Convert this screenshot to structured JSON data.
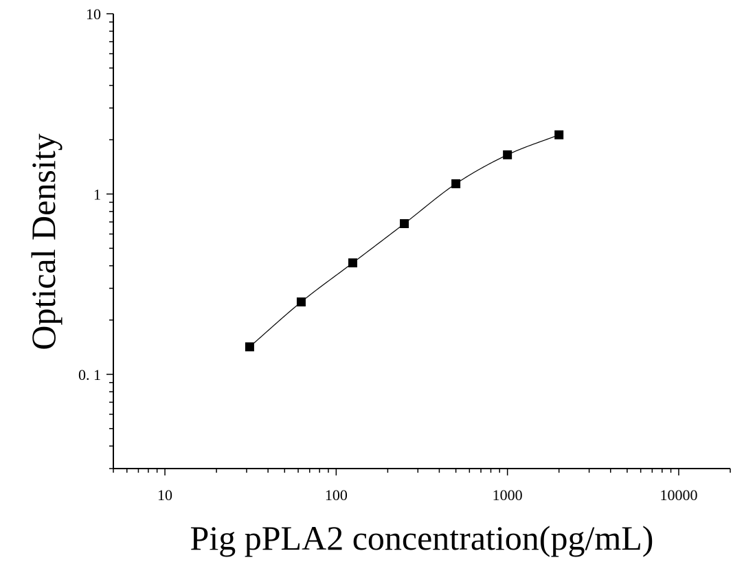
{
  "chart_data": {
    "type": "scatter",
    "title": "",
    "xlabel": "Pig pPLA2 concentration(pg/mL)",
    "ylabel": "Optical Density",
    "x_scale": "log",
    "y_scale": "log",
    "xlim": [
      5,
      20000
    ],
    "ylim": [
      0.03,
      10
    ],
    "x_ticks": [
      {
        "value": 10,
        "label": "10"
      },
      {
        "value": 100,
        "label": "100"
      },
      {
        "value": 1000,
        "label": "1000"
      },
      {
        "value": 10000,
        "label": "10000"
      }
    ],
    "y_ticks": [
      {
        "value": 0.1,
        "label": "0. 1"
      },
      {
        "value": 1,
        "label": "1"
      },
      {
        "value": 10,
        "label": "10"
      }
    ],
    "grid": false,
    "legend": "none",
    "marker_color": "#000000",
    "curve_color": "#000000",
    "series": [
      {
        "x": [
          31.25,
          62.5,
          125,
          250,
          500,
          1000,
          2000
        ],
        "y": [
          0.142,
          0.252,
          0.415,
          0.685,
          1.14,
          1.65,
          2.13
        ],
        "fit_curve": true
      }
    ]
  }
}
